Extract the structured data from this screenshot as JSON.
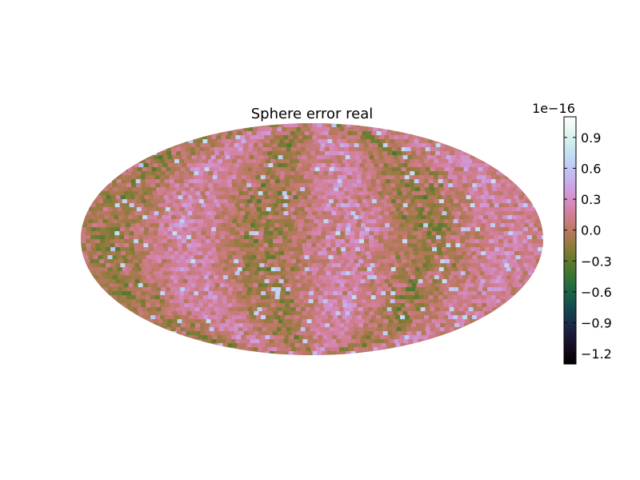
{
  "chart_data": {
    "type": "heatmap",
    "title": "Sphere error real",
    "projection": "mollweide",
    "colormap": "cubehelix",
    "colorbar": {
      "exponent_label": "1e−16",
      "vmin": -1.3,
      "vmax": 1.1,
      "ticks": [
        0.9,
        0.6,
        0.3,
        0.0,
        -0.3,
        -0.6,
        -0.9,
        -1.2
      ],
      "tick_labels": [
        "0.9",
        "0.6",
        "0.3",
        "0.0",
        "−0.3",
        "−0.6",
        "−0.9",
        "−1.2"
      ]
    },
    "dominant_value_range": [
      -0.4,
      0.5
    ]
  }
}
